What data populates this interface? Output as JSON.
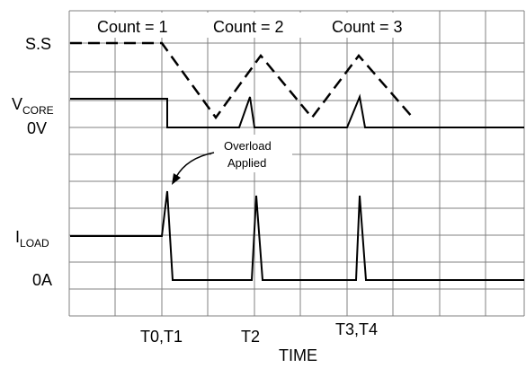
{
  "diagram": {
    "signals": [
      {
        "id": "ss",
        "label": "S.S",
        "sub": ""
      },
      {
        "id": "vcore",
        "label": "V",
        "sub": "CORE"
      },
      {
        "id": "iload",
        "label": "I",
        "sub": "LOAD"
      }
    ],
    "levels": {
      "zero_v": "0V",
      "zero_a": "0A"
    },
    "counts": [
      "Count = 1",
      "Count = 2",
      "Count = 3"
    ],
    "annotation": {
      "line1": "Overload",
      "line2": "Applied"
    },
    "time_ticks": [
      "T0,T1",
      "T2",
      "T3,T4"
    ],
    "xlabel": "TIME",
    "colors": {
      "grid": "#808080",
      "trace": "#000000",
      "background": "#ffffff"
    }
  }
}
